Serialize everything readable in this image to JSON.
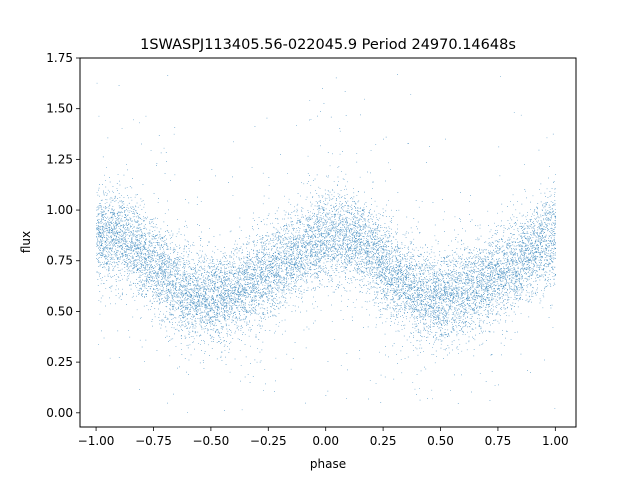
{
  "chart_data": {
    "type": "scatter",
    "title": "1SWASPJ113405.56-022045.9 Period 24970.14648s",
    "xlabel": "phase",
    "ylabel": "flux",
    "xlim": [
      -1.07,
      1.09
    ],
    "ylim": [
      -0.07,
      1.75
    ],
    "x_ticks": [
      -1.0,
      -0.75,
      -0.5,
      -0.25,
      0.0,
      0.25,
      0.5,
      0.75,
      1.0
    ],
    "x_tick_labels": [
      "−1.00",
      "−0.75",
      "−0.50",
      "−0.25",
      "0.00",
      "0.25",
      "0.50",
      "0.75",
      "1.00"
    ],
    "y_ticks": [
      0.0,
      0.25,
      0.5,
      0.75,
      1.0,
      1.25,
      1.5,
      1.75
    ],
    "y_tick_labels": [
      "0.00",
      "0.25",
      "0.50",
      "0.75",
      "1.00",
      "1.25",
      "1.50",
      "1.75"
    ],
    "grid": false,
    "point_color": "#1f77b4",
    "series": [
      {
        "values_model": "folded light curve, phase -1 to 1, two cycles",
        "phase_range": [
          -1.0,
          1.0
        ],
        "flux_max": 0.86,
        "flux_max_phase": [
          0.0,
          -1.0,
          1.0
        ],
        "flux_min": 0.56,
        "flux_min_phase": [
          -0.4,
          0.6
        ],
        "scatter_sigma": 0.11,
        "flux_range": [
          0.0,
          1.67
        ],
        "approx_point_count": 30000
      }
    ]
  }
}
